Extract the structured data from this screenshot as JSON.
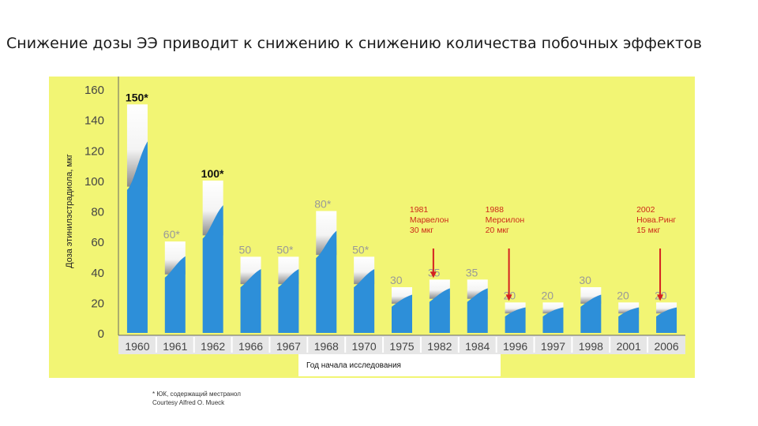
{
  "title": "Снижение дозы ЭЭ приводит к снижению к снижению количества побочных эффектов",
  "footnote": {
    "line1": "* ЮК, содержащий местранол",
    "line2": "Courtesy Alfred O. Mueck"
  },
  "colors": {
    "background": "#f2f574",
    "bar": "#2d8fd9",
    "arrow": "#d42020",
    "annotation": "#cc2a1a"
  },
  "chart_data": {
    "type": "bar",
    "ylabel": "Доза этинилэстрадиола, мкг",
    "xlabel": "Год начала исследования",
    "ylim": [
      0,
      160
    ],
    "yticks": [
      0,
      20,
      40,
      60,
      80,
      100,
      120,
      140,
      160
    ],
    "categories": [
      "1960",
      "1961",
      "1962",
      "1966",
      "1967",
      "1968",
      "1970",
      "1975",
      "1982",
      "1984",
      "1996",
      "1997",
      "1998",
      "2001",
      "2006"
    ],
    "values": [
      150,
      60,
      100,
      50,
      50,
      80,
      50,
      30,
      35,
      35,
      20,
      20,
      30,
      20,
      20
    ],
    "value_labels": [
      "150*",
      "60*",
      "100*",
      "50",
      "50*",
      "80*",
      "50*",
      "30",
      "35",
      "35",
      "20",
      "20",
      "30",
      "20",
      "20"
    ],
    "annotations": [
      {
        "category": "1982",
        "lines": [
          "1981",
          "Марвелон",
          "30 мкг"
        ]
      },
      {
        "category": "1996",
        "lines": [
          "1988",
          "Мерсилон",
          "20 мкг"
        ]
      },
      {
        "category": "2006",
        "lines": [
          "2002",
          "Нова.Ринг",
          "15 мкг"
        ]
      }
    ]
  }
}
